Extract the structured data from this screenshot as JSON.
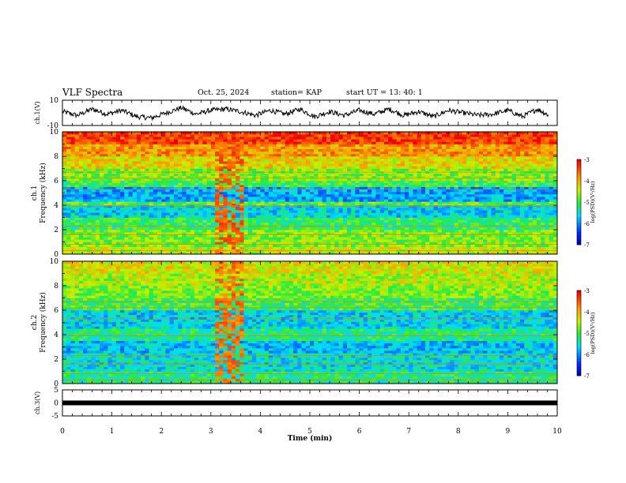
{
  "header": {
    "title": "VLF Spectra",
    "date": "Oct. 25, 2024",
    "station": "station= KAP",
    "start": "start  UT  =   13: 40: 1"
  },
  "chart_data": [
    {
      "type": "line",
      "panel": "ch1-waveform",
      "ylabel": "ch.1(V)",
      "ylim": [
        -10,
        10
      ],
      "y_ticks": [
        "10",
        "-10"
      ],
      "xlim": [
        0,
        10
      ],
      "x_end": 9.83,
      "series_samples": [
        {
          "t": 0.0,
          "v": 1
        },
        {
          "t": 0.3,
          "v": -2
        },
        {
          "t": 0.6,
          "v": 3
        },
        {
          "t": 0.9,
          "v": -1
        },
        {
          "t": 1.2,
          "v": 2
        },
        {
          "t": 1.5,
          "v": -3
        },
        {
          "t": 1.8,
          "v": -4
        },
        {
          "t": 2.1,
          "v": 0
        },
        {
          "t": 2.4,
          "v": 4
        },
        {
          "t": 2.7,
          "v": -1
        },
        {
          "t": 3.0,
          "v": 2
        },
        {
          "t": 3.3,
          "v": 3
        },
        {
          "t": 3.6,
          "v": 1
        },
        {
          "t": 3.9,
          "v": -2
        },
        {
          "t": 4.2,
          "v": 2
        },
        {
          "t": 4.5,
          "v": -1
        },
        {
          "t": 4.8,
          "v": 3
        },
        {
          "t": 5.1,
          "v": -3
        },
        {
          "t": 5.4,
          "v": 1
        },
        {
          "t": 5.7,
          "v": -2
        },
        {
          "t": 6.0,
          "v": 2
        },
        {
          "t": 6.3,
          "v": -1
        },
        {
          "t": 6.6,
          "v": 3
        },
        {
          "t": 6.9,
          "v": -2
        },
        {
          "t": 7.2,
          "v": 1
        },
        {
          "t": 7.5,
          "v": -3
        },
        {
          "t": 7.8,
          "v": 2
        },
        {
          "t": 8.1,
          "v": 0
        },
        {
          "t": 8.4,
          "v": -2
        },
        {
          "t": 8.7,
          "v": -1
        },
        {
          "t": 9.0,
          "v": 2
        },
        {
          "t": 9.3,
          "v": -3
        },
        {
          "t": 9.6,
          "v": 3
        },
        {
          "t": 9.83,
          "v": -2
        }
      ]
    },
    {
      "type": "heatmap",
      "panel": "ch1-spectrogram",
      "ylabel": "ch.1",
      "ylabel2": "Frequency (kHz)",
      "ylim": [
        0,
        10
      ],
      "y_ticks": [
        "0",
        "2",
        "4",
        "6",
        "8",
        "10"
      ],
      "colorbar": {
        "label": "log(PSD)(V²/Hz)",
        "ticks": [
          "-3",
          "-4",
          "-5",
          "-6",
          "-7"
        ],
        "range": [
          -7,
          -3
        ]
      },
      "bands": [
        {
          "f0": 0.0,
          "f1": 0.6,
          "level": -4.4
        },
        {
          "f0": 0.6,
          "f1": 2.0,
          "level": -4.7
        },
        {
          "f0": 2.0,
          "f1": 3.0,
          "level": -5.1
        },
        {
          "f0": 3.0,
          "f1": 4.0,
          "level": -5.6
        },
        {
          "f0": 4.0,
          "f1": 4.3,
          "level": -4.9
        },
        {
          "f0": 4.3,
          "f1": 5.5,
          "level": -5.8
        },
        {
          "f0": 5.5,
          "f1": 6.0,
          "level": -5.0
        },
        {
          "f0": 6.0,
          "f1": 7.0,
          "level": -4.7
        },
        {
          "f0": 7.0,
          "f1": 8.0,
          "level": -4.2
        },
        {
          "f0": 8.0,
          "f1": 9.0,
          "level": -3.8
        },
        {
          "f0": 9.0,
          "f1": 10.0,
          "level": -3.3
        }
      ],
      "event": {
        "t0": 3.07,
        "t1": 3.65,
        "level": -3.5
      }
    },
    {
      "type": "heatmap",
      "panel": "ch2-spectrogram",
      "ylabel": "ch.2",
      "ylabel2": "Frequency (kHz)",
      "ylim": [
        0,
        10
      ],
      "y_ticks": [
        "0",
        "2",
        "4",
        "6",
        "8",
        "10"
      ],
      "colorbar": {
        "label": "log(PSD)(V²/Hz)",
        "ticks": [
          "-3",
          "-4",
          "-5",
          "-6",
          "-7"
        ],
        "range": [
          -7,
          -3
        ]
      },
      "bands": [
        {
          "f0": 0.0,
          "f1": 1.0,
          "level": -5.2
        },
        {
          "f0": 1.0,
          "f1": 2.5,
          "level": -5.5
        },
        {
          "f0": 2.5,
          "f1": 3.5,
          "level": -5.7
        },
        {
          "f0": 3.5,
          "f1": 4.5,
          "level": -5.2
        },
        {
          "f0": 4.5,
          "f1": 6.0,
          "level": -5.6
        },
        {
          "f0": 6.0,
          "f1": 7.0,
          "level": -5.0
        },
        {
          "f0": 7.0,
          "f1": 8.0,
          "level": -4.7
        },
        {
          "f0": 8.0,
          "f1": 9.0,
          "level": -4.5
        },
        {
          "f0": 9.0,
          "f1": 10.0,
          "level": -4.3
        }
      ],
      "event": {
        "t0": 3.07,
        "t1": 3.65,
        "level": -3.6
      }
    },
    {
      "type": "line",
      "panel": "ch3-waveform",
      "ylabel": "ch.3(V)",
      "ylim": [
        -5,
        5
      ],
      "y_ticks": [
        "5",
        "0",
        "-5"
      ],
      "xlabel": "Time (min)",
      "xlim": [
        0,
        10
      ],
      "x_ticks": [
        "0",
        "1",
        "2",
        "3",
        "4",
        "5",
        "6",
        "7",
        "8",
        "9",
        "10"
      ],
      "series_samples": [
        {
          "t": 0,
          "v": 0
        },
        {
          "t": 10,
          "v": 0
        }
      ]
    }
  ]
}
